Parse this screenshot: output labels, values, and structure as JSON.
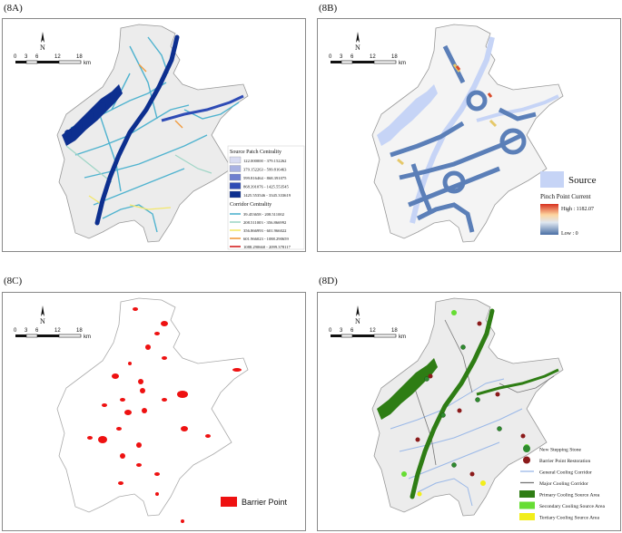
{
  "panels": {
    "a": {
      "label": "(8A)",
      "legend": {
        "source_title": "Source Patch Centrality",
        "source_items": [
          {
            "label": "122.000000 - 379.152262",
            "color": "#d9dcf2"
          },
          {
            "label": "379.152263 - 599.816463",
            "color": "#a9b2e2"
          },
          {
            "label": "599.816464 - 868.391075",
            "color": "#6f7fcf"
          },
          {
            "label": "868.391076 - 1425.553545",
            "color": "#2e4bb5"
          },
          {
            "label": "1425.553546 - 3345.333619",
            "color": "#0d2f8f"
          }
        ],
        "corridor_title": "Corridor Centrality",
        "corridor_items": [
          {
            "label": "39.453658 - 208.511002",
            "color": "#4fb3cf"
          },
          {
            "label": "208.511003 - 356.866992",
            "color": "#9fd6c6"
          },
          {
            "label": "356.866993 - 601.966022",
            "color": "#f3e76a"
          },
          {
            "label": "601.966023 - 1088.290659",
            "color": "#f29a3c"
          },
          {
            "label": "1088.290660 - 2099.378117",
            "color": "#d42020"
          }
        ]
      }
    },
    "b": {
      "label": "(8B)",
      "legend": {
        "source": "Source",
        "current_title": "Pinch Point Current",
        "high": "High : 1182.07",
        "low": "Low : 0",
        "source_color": "#c6d4f6"
      }
    },
    "c": {
      "label": "(8C)",
      "legend": {
        "barrier": "Barrier Point",
        "color": "#ee1111"
      }
    },
    "d": {
      "label": "(8D)",
      "legend": [
        {
          "label": "New Stepping Stone",
          "kind": "green-dot",
          "color": "#2e8b2e"
        },
        {
          "label": "Barrier Point Restoration",
          "kind": "red-dot",
          "color": "#8b1a1a"
        },
        {
          "label": "General Cooling Corridor",
          "kind": "line",
          "color": "#9ab8e8"
        },
        {
          "label": "Major Cooling Corridor",
          "kind": "line",
          "color": "#777777"
        },
        {
          "label": "Primary Cooling Source Area",
          "kind": "box",
          "color": "#2e7d14"
        },
        {
          "label": "Secondary Cooling Source Area",
          "kind": "box",
          "color": "#66dd33"
        },
        {
          "label": "Tertiary Cooling Source Area",
          "kind": "box",
          "color": "#f2ee1a"
        }
      ]
    }
  },
  "north": "N",
  "scale": {
    "ticks": [
      "0",
      "3",
      "6",
      "12",
      "18"
    ],
    "unit": "km"
  }
}
